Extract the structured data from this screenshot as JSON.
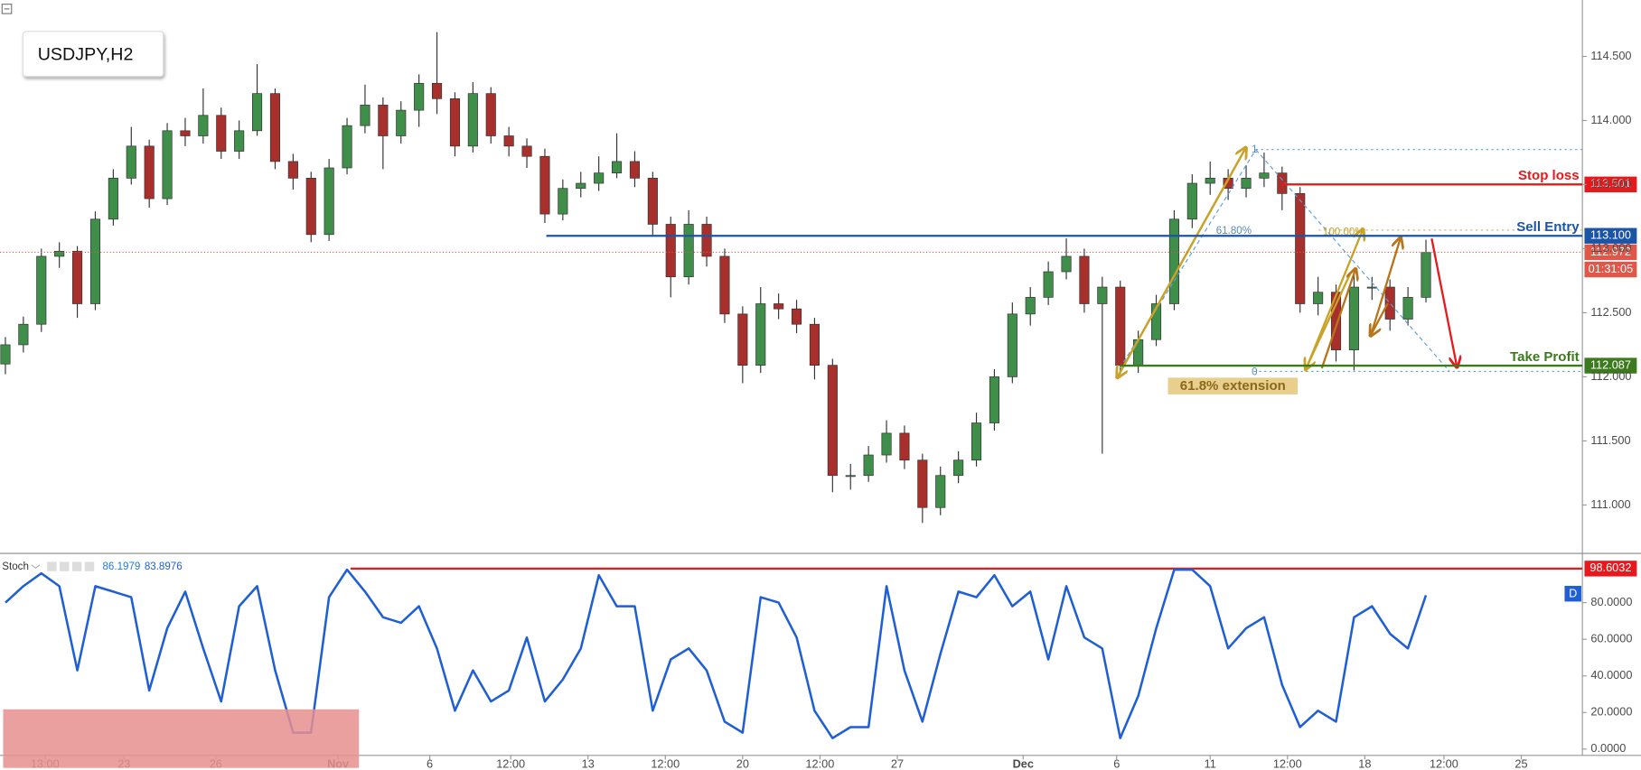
{
  "chart_data": [
    {
      "type": "candlestick",
      "title": "USDJPY,H2",
      "xlim": [
        -0.3,
        87.7
      ],
      "xticks": [
        {
          "value": 2.2,
          "label": "13:00"
        },
        {
          "value": 6.6,
          "label": "23"
        },
        {
          "value": 11.7,
          "label": "26"
        },
        {
          "value": 18.5,
          "label": "Nov"
        },
        {
          "value": 23.6,
          "label": "6"
        },
        {
          "value": 28.1,
          "label": "12:00"
        },
        {
          "value": 32.4,
          "label": "13"
        },
        {
          "value": 36.7,
          "label": "12:00"
        },
        {
          "value": 41.0,
          "label": "20"
        },
        {
          "value": 45.3,
          "label": "12:00"
        },
        {
          "value": 49.6,
          "label": "27"
        },
        {
          "value": 56.6,
          "label": "Dec"
        },
        {
          "value": 61.8,
          "label": "6"
        },
        {
          "value": 67.0,
          "label": "11"
        },
        {
          "value": 71.3,
          "label": "12:00"
        },
        {
          "value": 75.6,
          "label": "18"
        },
        {
          "value": 80.0,
          "label": "12:00"
        },
        {
          "value": 84.3,
          "label": "25"
        }
      ],
      "open": [
        112.1,
        112.25,
        112.41,
        112.94,
        112.98,
        112.57,
        113.23,
        113.55,
        113.8,
        113.39,
        113.92,
        113.88,
        114.04,
        113.76,
        113.92,
        114.21,
        113.68,
        113.55,
        113.11,
        113.63,
        113.96,
        114.12,
        113.88,
        114.08,
        114.29,
        114.17,
        113.8,
        114.21,
        113.88,
        113.8,
        113.72,
        113.27,
        113.47,
        113.51,
        113.59,
        113.68,
        113.55,
        113.19,
        112.78,
        113.19,
        112.94,
        112.49,
        112.09,
        112.57,
        112.53,
        112.41,
        112.09,
        111.23,
        111.23,
        111.39,
        111.56,
        111.35,
        110.98,
        111.23,
        111.35,
        111.64,
        112.0,
        112.49,
        112.62,
        112.82,
        112.94,
        112.57,
        112.7,
        112.09,
        112.29,
        112.57,
        113.23,
        113.51,
        113.55,
        113.47,
        113.55,
        113.59,
        113.43,
        112.57,
        112.66,
        112.21,
        112.7,
        112.7,
        112.45,
        112.62
      ],
      "high": [
        112.31,
        112.47,
        113.0,
        113.05,
        113.02,
        113.29,
        113.62,
        113.95,
        113.85,
        113.98,
        114.02,
        114.25,
        114.1,
        114.0,
        114.44,
        114.25,
        113.74,
        113.6,
        113.7,
        114.02,
        114.28,
        114.18,
        114.15,
        114.36,
        114.69,
        114.22,
        114.3,
        114.26,
        113.95,
        113.86,
        113.78,
        113.54,
        113.6,
        113.72,
        113.9,
        113.76,
        113.6,
        113.25,
        113.3,
        113.25,
        113.0,
        112.55,
        112.7,
        112.65,
        112.6,
        112.46,
        112.14,
        111.32,
        111.46,
        111.66,
        111.62,
        111.4,
        111.3,
        111.42,
        111.72,
        112.06,
        112.58,
        112.7,
        112.9,
        113.08,
        113.0,
        112.78,
        112.75,
        112.36,
        112.64,
        113.3,
        113.58,
        113.68,
        113.62,
        113.65,
        113.75,
        113.64,
        113.48,
        112.78,
        112.72,
        112.8,
        112.78,
        112.76,
        112.7,
        113.07
      ],
      "low": [
        112.02,
        112.19,
        112.35,
        112.85,
        112.46,
        112.52,
        113.18,
        113.5,
        113.32,
        113.34,
        113.8,
        113.82,
        113.7,
        113.7,
        113.88,
        113.62,
        113.46,
        113.05,
        113.06,
        113.58,
        113.9,
        113.62,
        113.82,
        113.95,
        114.05,
        113.72,
        113.75,
        113.82,
        113.72,
        113.63,
        113.2,
        113.22,
        113.4,
        113.45,
        113.55,
        113.48,
        113.1,
        112.62,
        112.72,
        112.86,
        112.42,
        111.95,
        112.03,
        112.45,
        112.34,
        111.98,
        111.1,
        111.12,
        111.18,
        111.33,
        111.28,
        110.86,
        110.92,
        111.17,
        111.3,
        111.58,
        111.95,
        112.4,
        112.56,
        112.76,
        112.5,
        111.4,
        112.02,
        112.03,
        112.24,
        112.52,
        113.16,
        113.42,
        113.38,
        113.4,
        113.48,
        113.3,
        112.5,
        112.48,
        112.12,
        112.05,
        112.6,
        112.36,
        112.4,
        112.58
      ],
      "close": [
        112.25,
        112.41,
        112.94,
        112.98,
        112.57,
        113.23,
        113.55,
        113.8,
        113.39,
        113.92,
        113.88,
        114.04,
        113.76,
        113.92,
        114.21,
        113.68,
        113.55,
        113.11,
        113.63,
        113.96,
        114.12,
        113.88,
        114.08,
        114.29,
        114.17,
        113.8,
        114.21,
        113.88,
        113.8,
        113.72,
        113.27,
        113.47,
        113.51,
        113.59,
        113.68,
        113.55,
        113.19,
        112.78,
        113.19,
        112.94,
        112.49,
        112.09,
        112.57,
        112.53,
        112.41,
        112.09,
        111.23,
        111.23,
        111.39,
        111.56,
        111.35,
        110.98,
        111.23,
        111.35,
        111.64,
        112.0,
        112.49,
        112.62,
        112.82,
        112.94,
        112.57,
        112.7,
        112.09,
        112.29,
        112.57,
        113.23,
        113.51,
        113.55,
        113.47,
        113.55,
        113.59,
        113.43,
        112.57,
        112.66,
        112.21,
        112.7,
        112.7,
        112.45,
        112.62,
        112.97
      ],
      "up_color": "#3f8f4a",
      "down_color": "#a8302c",
      "ylim": [
        110.63,
        114.94
      ],
      "yticks": [
        {
          "value": 111,
          "label": "111.000"
        },
        {
          "value": 111.5,
          "label": "111.500"
        },
        {
          "value": 112,
          "label": "112.000"
        },
        {
          "value": 112.5,
          "label": "112.500"
        },
        {
          "value": 113,
          "label": "113.000"
        },
        {
          "value": 113.5,
          "label": "113.500"
        },
        {
          "value": 114,
          "label": "114.000"
        },
        {
          "value": 114.5,
          "label": "114.500"
        }
      ],
      "levels": [
        {
          "name": "Stop loss",
          "value": 113.501,
          "label": "113.501",
          "color": "#e8191c"
        },
        {
          "name": "Sell Entry",
          "value": 113.1,
          "label": "113.100",
          "color": "#1d55a6"
        },
        {
          "name": "Take Profit",
          "value": 112.087,
          "label": "112.087",
          "color": "#3c7a1e"
        }
      ],
      "last_price": {
        "value": 112.972,
        "label": "112.972",
        "countdown": "01:31:05",
        "color": "#e0574a"
      },
      "annotations": {
        "extension": "61.8% extension",
        "fib_618": "61.80%",
        "fib_100": "100.00%",
        "fib_0": "0",
        "fib_1": "1"
      }
    },
    {
      "type": "line",
      "title": "Stoch",
      "readings": [
        86.1979,
        83.8976
      ],
      "xlim": [
        -0.3,
        87.7
      ],
      "series": [
        {
          "name": "D",
          "color": "#1f5fd6",
          "values": [
            80,
            89,
            96,
            89,
            43,
            89,
            86,
            83,
            32,
            66,
            86,
            55,
            26,
            78,
            89,
            43,
            9,
            9,
            83,
            98,
            86,
            72,
            69,
            78,
            55,
            21,
            43,
            26,
            32,
            61,
            26,
            38,
            55,
            95,
            78,
            78,
            21,
            49,
            55,
            43,
            15,
            9,
            83,
            80,
            61,
            21,
            6,
            12,
            12,
            89,
            43,
            15,
            52,
            86,
            83,
            95,
            78,
            86,
            49,
            89,
            61,
            55,
            6,
            29,
            66,
            98,
            98,
            89,
            55,
            66,
            72,
            35,
            12,
            21,
            15,
            72,
            78,
            63,
            55,
            84
          ]
        }
      ],
      "ylim": [
        -3.4,
        106.3
      ],
      "yticks": [
        {
          "value": 0,
          "label": "0.0000"
        },
        {
          "value": 20,
          "label": "20.0000"
        },
        {
          "value": 40,
          "label": "40.0000"
        },
        {
          "value": 60,
          "label": "60.0000"
        },
        {
          "value": 80,
          "label": "80.0000"
        }
      ],
      "level": {
        "value": 98.6032,
        "label": "98.6032",
        "color": "#e8191c"
      }
    }
  ]
}
